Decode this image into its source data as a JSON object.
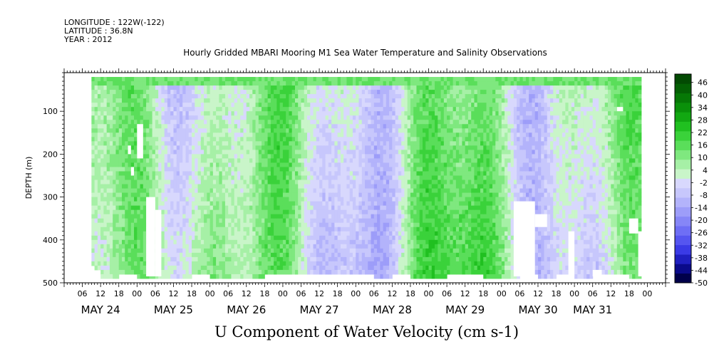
{
  "header": {
    "longitude": "LONGITUDE : 122W(-122)",
    "latitude": "LATITUDE : 36.8N",
    "year": "YEAR : 2012"
  },
  "chart_data": {
    "type": "heatmap",
    "title": "Hourly Gridded MBARI Mooring M1 Sea Water Temperature and Salinity Observations",
    "xlabel": "U Component of Water Velocity (cm s-1)",
    "ylabel": "DEPTH (m)",
    "ylim": [
      500,
      10
    ],
    "y_ticks": [
      100,
      200,
      300,
      400,
      500
    ],
    "x_hour_labels": [
      "06",
      "12",
      "18",
      "00",
      "06",
      "12",
      "18",
      "00",
      "06",
      "12",
      "18",
      "00",
      "06",
      "12",
      "18",
      "00",
      "06",
      "12",
      "18",
      "00",
      "06",
      "12",
      "18",
      "00",
      "06",
      "12",
      "18",
      "00",
      "06",
      "12",
      "18",
      "00"
    ],
    "x_day_labels": [
      "MAY 24",
      "MAY 25",
      "MAY 26",
      "MAY 27",
      "MAY 28",
      "MAY 29",
      "MAY 30",
      "MAY 31"
    ],
    "colorbar_labels": [
      46,
      40,
      34,
      28,
      22,
      16,
      10,
      4,
      -2,
      -8,
      -14,
      -20,
      -26,
      -32,
      -38,
      -44,
      -50
    ],
    "colorbar_range": [
      -50,
      50
    ],
    "colorbar_colors": [
      "#00004a",
      "#0a0a8a",
      "#1f1fc0",
      "#3a3ae6",
      "#5555f0",
      "#6e6ef5",
      "#8686f7",
      "#9d9df9",
      "#b3b3fb",
      "#c7c7fc",
      "#d8d8fd",
      "#c9f5c9",
      "#a6f0a6",
      "#7fe87f",
      "#5ade5a",
      "#3ad23a",
      "#20c020",
      "#12a812",
      "#0a900a",
      "#067806",
      "#046004",
      "#034a03"
    ],
    "data_hours": [
      9,
      190
    ],
    "data_depth_range": [
      20,
      485
    ],
    "field_description": "hourly U velocity field on depth-time grid, values approx -30 to 40 cm/s"
  }
}
